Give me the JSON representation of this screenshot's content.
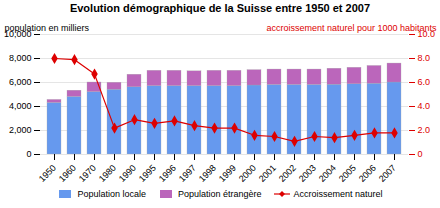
{
  "chart_data": {
    "type": "bar",
    "title": "Evolution démographique de la Suisse entre 1950 et 2007",
    "categories": [
      "1950",
      "1960",
      "1970",
      "1980",
      "1990",
      "1995",
      "1996",
      "1997",
      "1998",
      "1999",
      "2000",
      "2001",
      "2002",
      "2003",
      "2004",
      "2005",
      "2006",
      "2007"
    ],
    "stacked": true,
    "grid": true,
    "legend": "bottom",
    "ylabel": "population en milliers",
    "y2label": "accroissement naturel pour 1000 habitants",
    "ylim": [
      0,
      10000
    ],
    "yticks": [
      0,
      {
        "value": 2000,
        "label": "2,000"
      },
      {
        "value": 4000,
        "label": "4,000"
      },
      {
        "value": 6000,
        "label": "6,000"
      },
      {
        "value": 8000,
        "label": "8,000"
      },
      {
        "value": 10000,
        "label": "10,000"
      }
    ],
    "y2lim": [
      0,
      10.0
    ],
    "y2ticks": [
      0,
      {
        "value": 2.0,
        "label": "2.0"
      },
      {
        "value": 4.0,
        "label": "4.0"
      },
      {
        "value": 6.0,
        "label": "6.0"
      },
      {
        "value": 8.0,
        "label": "8.0"
      },
      {
        "value": 10.0,
        "label": "10.0"
      }
    ],
    "series": [
      {
        "name": "Population locale",
        "type": "bar",
        "color": "#6699EE",
        "values": [
          4300,
          4800,
          5200,
          5400,
          5600,
          5700,
          5700,
          5700,
          5700,
          5700,
          5750,
          5800,
          5800,
          5800,
          5820,
          5850,
          5900,
          6000
        ]
      },
      {
        "name": "Population étrangère",
        "type": "bar",
        "color": "#BB66BB",
        "values": [
          250,
          520,
          800,
          580,
          1050,
          1280,
          1280,
          1230,
          1280,
          1280,
          1280,
          1280,
          1280,
          1280,
          1330,
          1380,
          1480,
          1580
        ]
      },
      {
        "name": "Accroissement naturel",
        "type": "line",
        "axis": "y2",
        "color": "#DD0000",
        "marker": "diamond",
        "values": [
          8.0,
          7.9,
          6.7,
          2.2,
          2.9,
          2.6,
          2.8,
          2.4,
          2.2,
          2.2,
          1.6,
          1.5,
          1.1,
          1.5,
          1.4,
          1.6,
          1.8,
          1.8
        ]
      }
    ]
  }
}
